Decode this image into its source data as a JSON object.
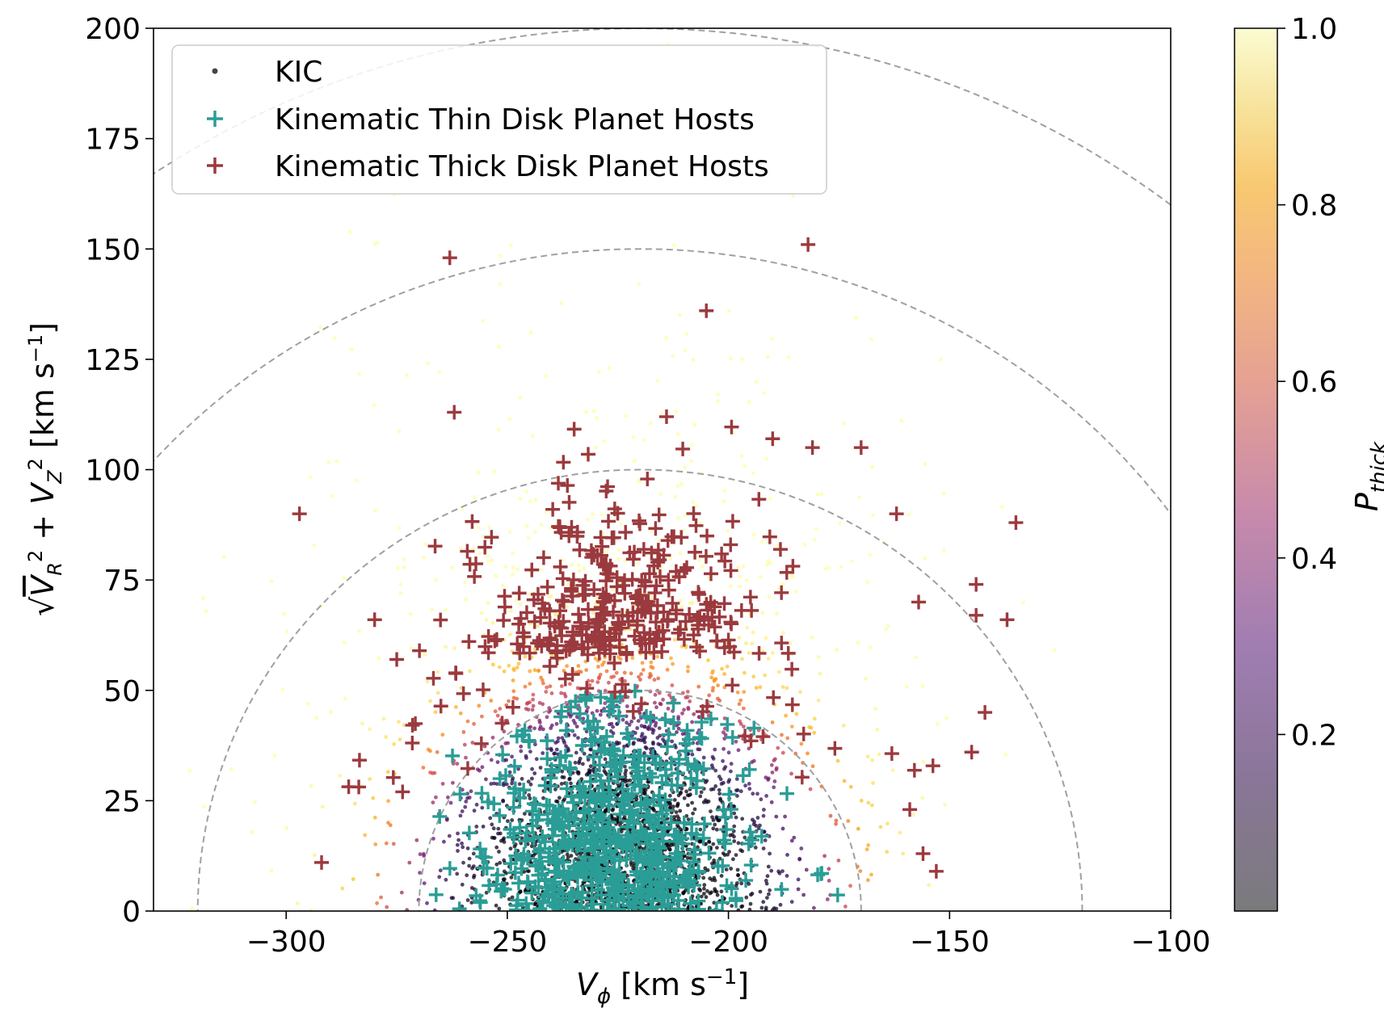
{
  "chart_data": {
    "type": "scatter",
    "title": "",
    "xlabel": "V_φ [km s⁻¹]",
    "ylabel": "√(V_R² + V_Z²) [km s⁻¹]",
    "xlim": [
      -330,
      -100
    ],
    "ylim": [
      0,
      200
    ],
    "xticks": [
      -300,
      -250,
      -200,
      -150,
      -100
    ],
    "xtick_labels": [
      "−300",
      "−250",
      "−200",
      "−150",
      "−100"
    ],
    "yticks": [
      0,
      25,
      50,
      75,
      100,
      125,
      150,
      175,
      200
    ],
    "ytick_labels": [
      "0",
      "25",
      "50",
      "75",
      "100",
      "125",
      "150",
      "175",
      "200"
    ],
    "grid": false,
    "legend_position": "top-left",
    "series": [
      {
        "name": "KIC",
        "marker": "dot",
        "color_by": "P_thick",
        "approx_center": [
          -225,
          0
        ],
        "approx_count": 3000
      },
      {
        "name": "Kinematic Thin Disk Planet Hosts",
        "marker": "plus",
        "color": "#2a9d96"
      },
      {
        "name": "Kinematic Thick Disk Planet Hosts",
        "marker": "plus",
        "color": "#9b3a3e"
      }
    ],
    "thick_hosts_outliers": [
      [
        -263,
        148
      ],
      [
        -182,
        151
      ],
      [
        -205,
        136
      ],
      [
        -297,
        90
      ],
      [
        -135,
        88
      ],
      [
        -162,
        90
      ],
      [
        -144,
        74
      ],
      [
        -157,
        70
      ],
      [
        -144,
        67
      ],
      [
        -137,
        66
      ],
      [
        -280,
        66
      ],
      [
        -275,
        57
      ],
      [
        -292,
        11
      ],
      [
        -153,
        9
      ],
      [
        -156,
        13
      ],
      [
        -159,
        23
      ],
      [
        -145,
        36
      ],
      [
        -142,
        45
      ],
      [
        -181,
        105
      ],
      [
        -170,
        105
      ],
      [
        -190,
        107
      ],
      [
        -262,
        113
      ],
      [
        -214,
        112
      ]
    ],
    "reference_circles": {
      "center_vphi": -220,
      "radii": [
        50,
        100,
        150,
        200
      ],
      "style": "dashed gray"
    },
    "colorbar": {
      "label": "P_thick",
      "range": [
        0,
        1
      ],
      "ticks": [
        0.2,
        0.4,
        0.6,
        0.8,
        1.0
      ],
      "tick_labels": [
        "0.2",
        "0.4",
        "0.6",
        "0.8",
        "1.0"
      ],
      "colormap": "inferno"
    }
  },
  "legend": {
    "items": [
      {
        "label": "KIC"
      },
      {
        "label": "Kinematic Thin Disk Planet Hosts"
      },
      {
        "label": "Kinematic Thick Disk Planet Hosts"
      }
    ]
  },
  "colors": {
    "thin": "#2a9d96",
    "thick": "#9b3a3e",
    "circle": "#a0a0a0"
  }
}
